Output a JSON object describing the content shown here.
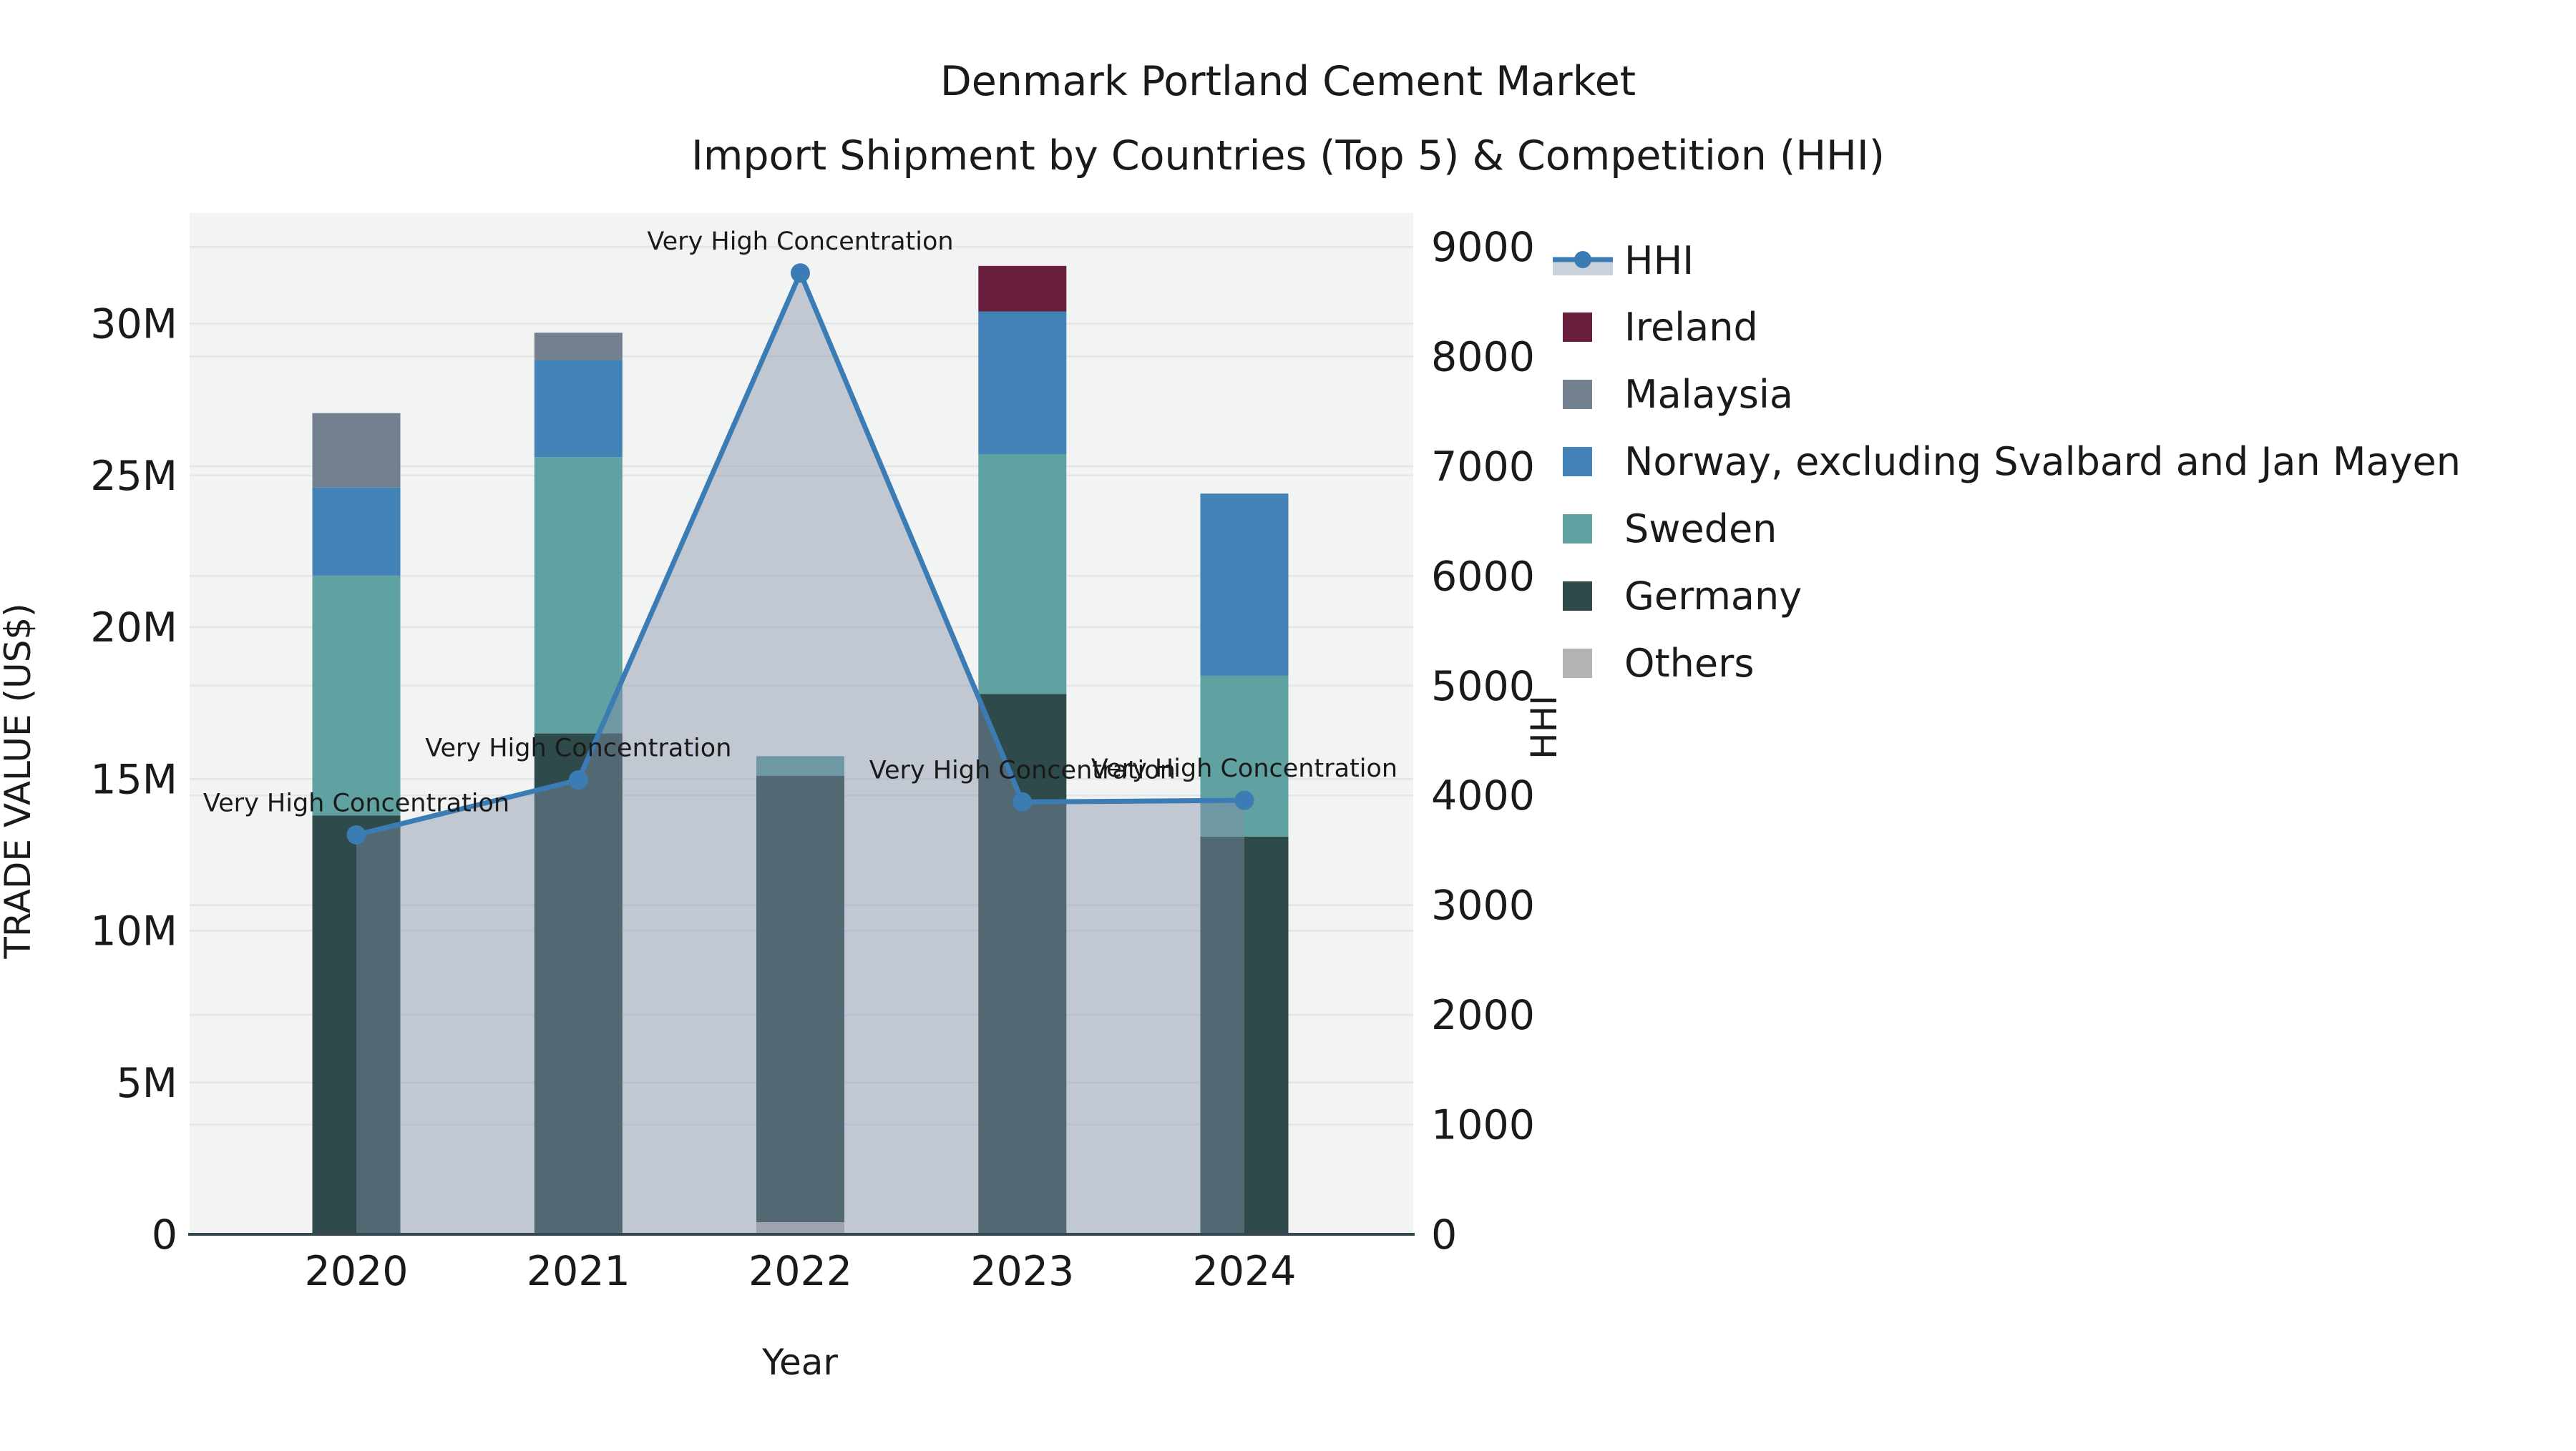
{
  "title": {
    "line1": "Denmark Portland Cement Market",
    "line2": "Import Shipment by Countries (Top 5) & Competition (HHI)"
  },
  "axes": {
    "left_title": "TRADE VALUE (US$)",
    "right_title": "HHI",
    "x_title": "Year"
  },
  "chart_data": {
    "type": "bar",
    "subtype": "stacked-bars-with-line",
    "title": "Denmark Portland Cement Market — Import Shipment by Countries (Top 5) & Competition (HHI)",
    "categories": [
      "2020",
      "2021",
      "2022",
      "2023",
      "2024"
    ],
    "value_unit": "million US$",
    "series": [
      {
        "name": "Others",
        "color": "#b3b3b3",
        "values": [
          0,
          0,
          0.4,
          0,
          0
        ]
      },
      {
        "name": "Germany",
        "color": "#2e4a4b",
        "values": [
          13.8,
          16.5,
          14.7,
          17.8,
          13.1
        ]
      },
      {
        "name": "Sweden",
        "color": "#60a1a2",
        "values": [
          7.9,
          9.1,
          0.65,
          7.9,
          5.3
        ]
      },
      {
        "name": "Norway, excluding Svalbard and Jan Mayen",
        "color": "#4282b6",
        "values": [
          2.9,
          3.2,
          0,
          4.7,
          6.0
        ]
      },
      {
        "name": "Malaysia",
        "color": "#72808f",
        "values": [
          2.45,
          0.9,
          0,
          0,
          0
        ]
      },
      {
        "name": "Ireland",
        "color": "#6b1f3e",
        "values": [
          0,
          0,
          0,
          1.5,
          0
        ]
      }
    ],
    "bar_totals": [
      27.05,
      29.7,
      15.75,
      31.9,
      24.4
    ],
    "line_series": {
      "name": "HHI",
      "axis": "right",
      "color": "#3c7cb4",
      "area_fill": "rgba(129,143,166,0.43)",
      "values": [
        3640,
        4140,
        8760,
        3940,
        3955
      ]
    },
    "left_axis": {
      "label": "TRADE VALUE (US$)",
      "ticks": [
        {
          "label": "0",
          "value": 0
        },
        {
          "label": "5M",
          "value": 5
        },
        {
          "label": "10M",
          "value": 10
        },
        {
          "label": "15M",
          "value": 15
        },
        {
          "label": "20M",
          "value": 20
        },
        {
          "label": "25M",
          "value": 25
        },
        {
          "label": "30M",
          "value": 30
        }
      ],
      "range_millions": [
        0,
        33.6
      ],
      "grid": true
    },
    "right_axis": {
      "label": "HHI",
      "ticks": [
        {
          "label": "0",
          "value": 0
        },
        {
          "label": "1000",
          "value": 1000
        },
        {
          "label": "2000",
          "value": 2000
        },
        {
          "label": "3000",
          "value": 3000
        },
        {
          "label": "4000",
          "value": 4000
        },
        {
          "label": "5000",
          "value": 5000
        },
        {
          "label": "6000",
          "value": 6000
        },
        {
          "label": "7000",
          "value": 7000
        },
        {
          "label": "8000",
          "value": 8000
        },
        {
          "label": "9000",
          "value": 9000
        }
      ],
      "range": [
        0,
        9300
      ],
      "grid": true
    },
    "annotations": [
      {
        "category": "2020",
        "text": "Very High Concentration"
      },
      {
        "category": "2021",
        "text": "Very High Concentration"
      },
      {
        "category": "2022",
        "text": "Very High Concentration"
      },
      {
        "category": "2023",
        "text": "Very High Concentration"
      },
      {
        "category": "2024",
        "text": "Very High Concentration"
      }
    ],
    "legend_position": "right",
    "legend": [
      {
        "label": "HHI",
        "type": "line",
        "color": "#3c7cb4",
        "band_color": "#c9d2dd"
      },
      {
        "label": "Ireland",
        "type": "square",
        "color": "#6b1f3e"
      },
      {
        "label": "Malaysia",
        "type": "square",
        "color": "#72808f"
      },
      {
        "label": "Norway, excluding Svalbard and Jan Mayen",
        "type": "square",
        "color": "#4282b6"
      },
      {
        "label": "Sweden",
        "type": "square",
        "color": "#60a1a2"
      },
      {
        "label": "Germany",
        "type": "square",
        "color": "#2e4a4b"
      },
      {
        "label": "Others",
        "type": "square",
        "color": "#b3b3b3"
      }
    ],
    "colors": {
      "plot_background": "#f2f3f3",
      "gridline": "#e4e5e7",
      "axis_line": "#37474f",
      "text": "#1a1a1a"
    }
  }
}
